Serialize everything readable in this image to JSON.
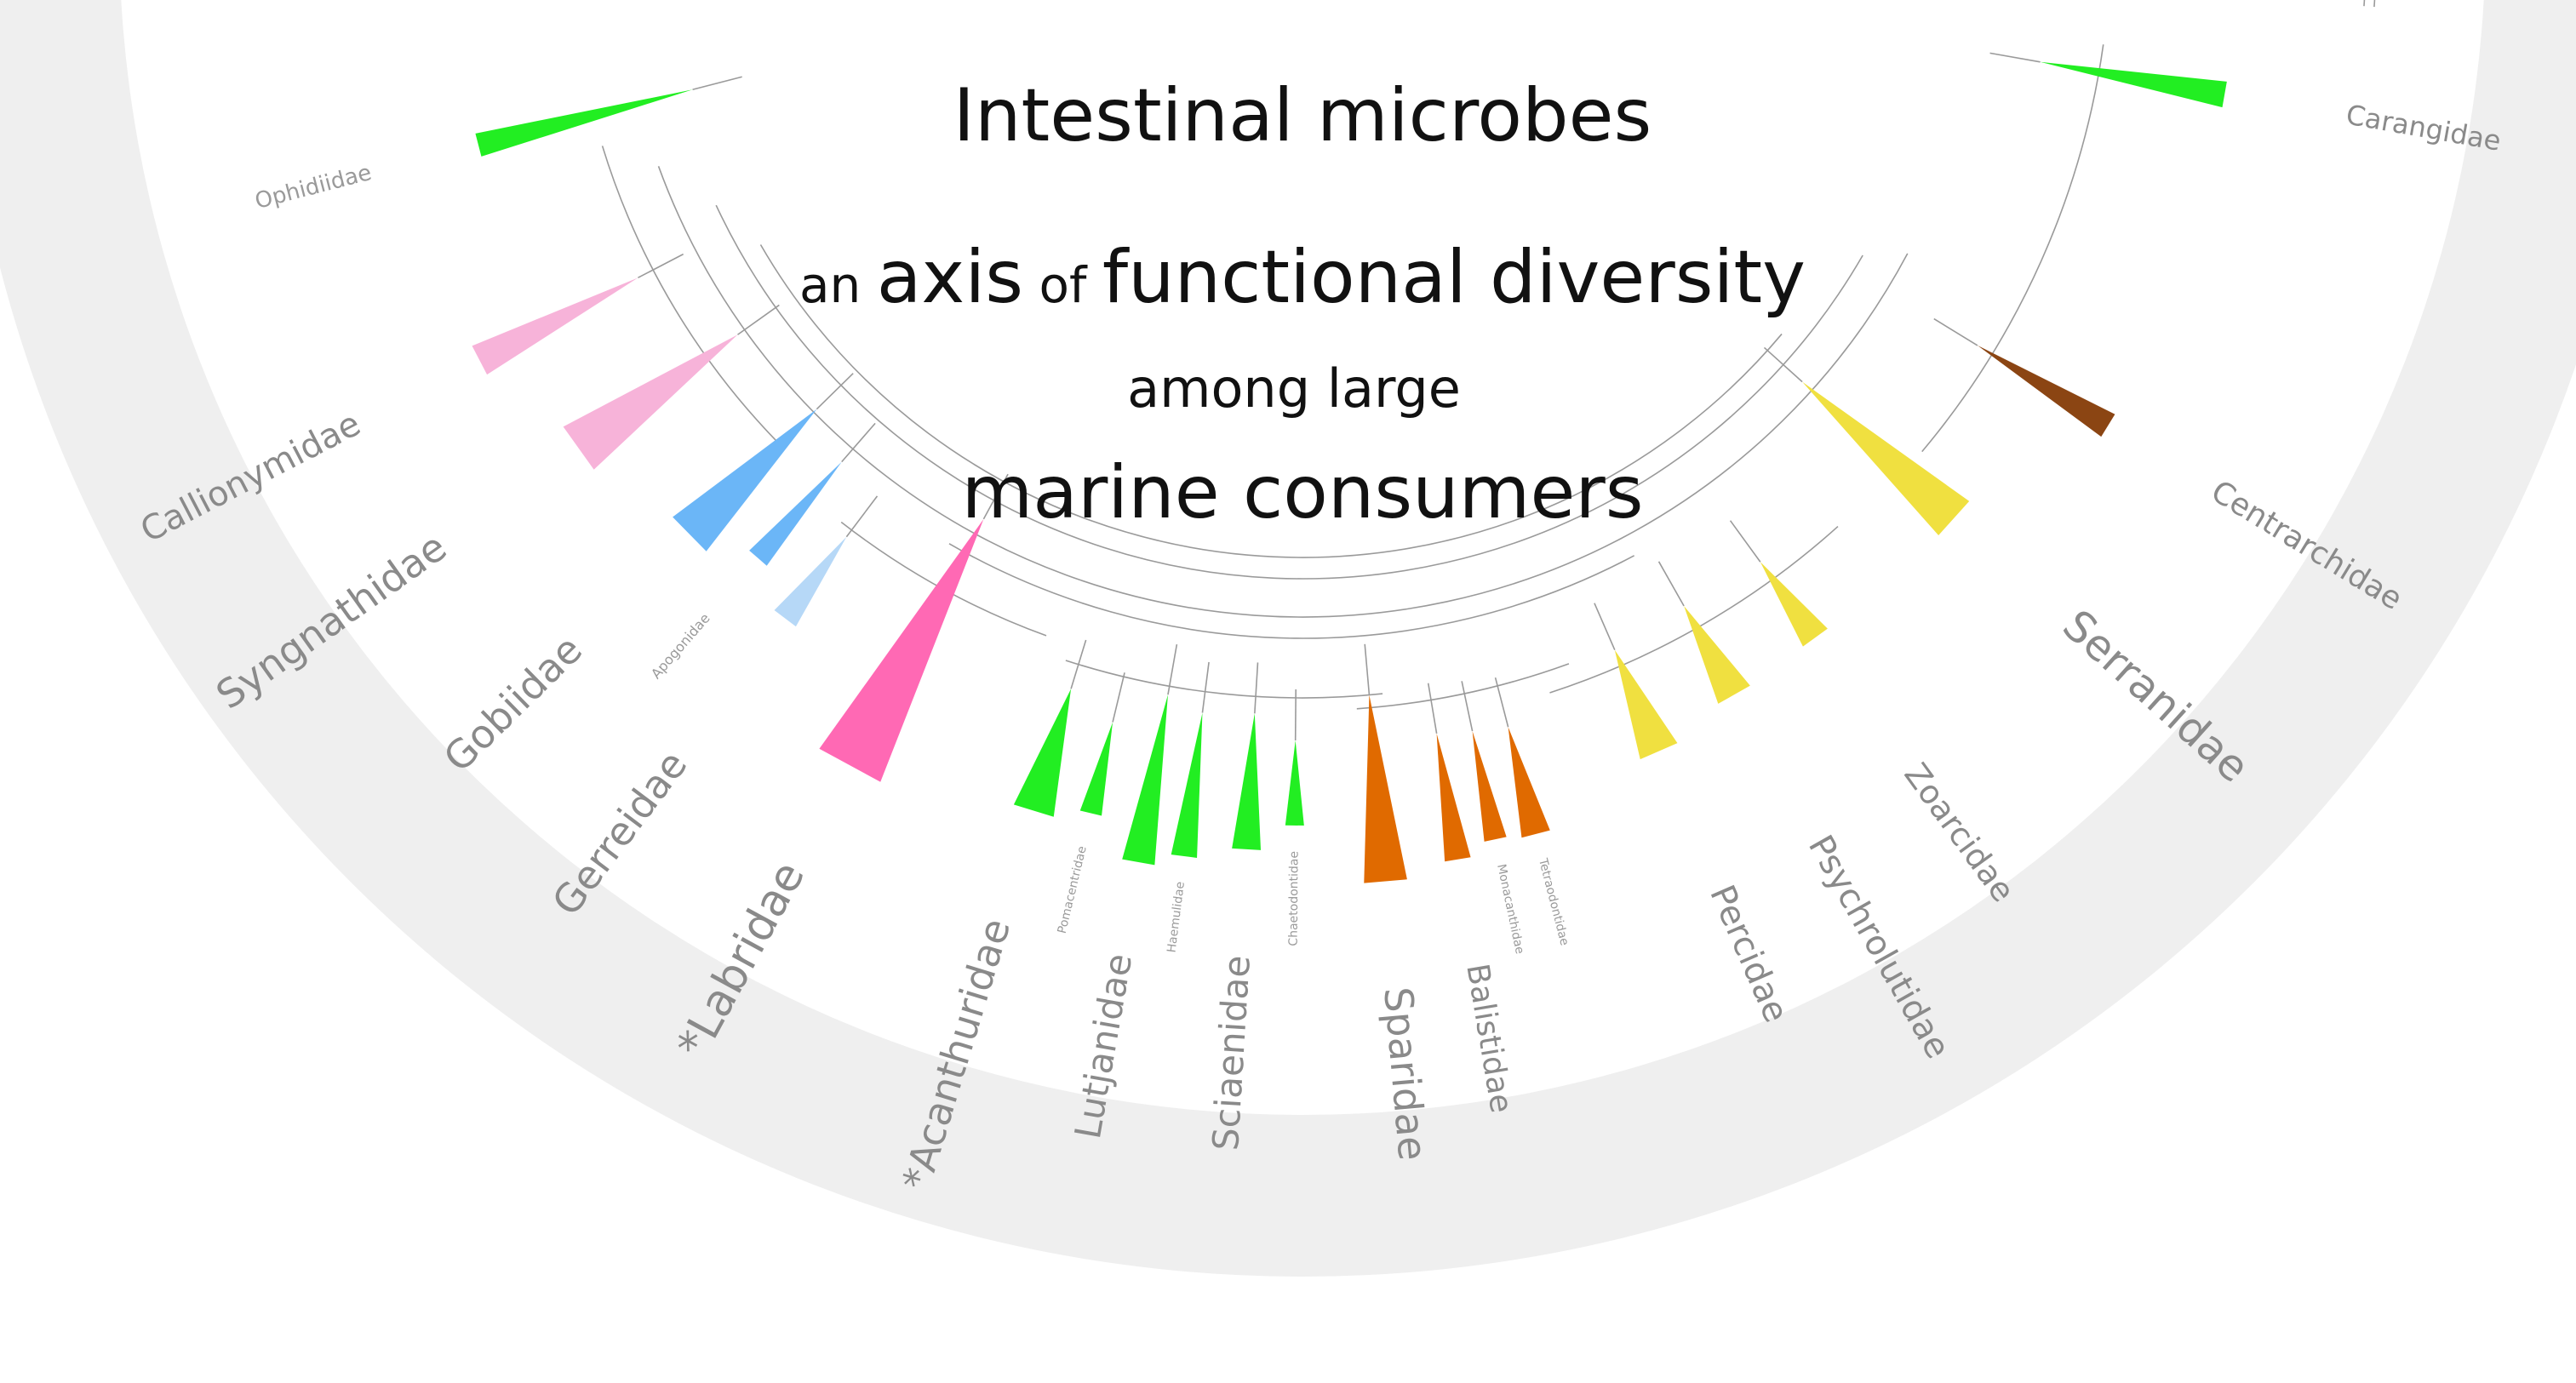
{
  "title": {
    "line1": "Intestinal microbes",
    "line2_parts": [
      {
        "text": "an ",
        "size": "small"
      },
      {
        "text": "axis",
        "size": "large"
      },
      {
        "text": " of ",
        "size": "small"
      },
      {
        "text": "functional diversity",
        "size": "large"
      }
    ],
    "line3": "among large",
    "line4": "marine consumers"
  },
  "colors": {
    "background_ring": "#efefef",
    "branch": "#9a9a9a",
    "label": "#8a8a8a",
    "title": "#111111"
  },
  "families": [
    {
      "name": "Ophidiidae",
      "color": "#22ee22",
      "major": false
    },
    {
      "name": "Callionymidae",
      "color": "#f7b3d9",
      "major": true
    },
    {
      "name": "Syngnathidae",
      "color": "#f7b3d9",
      "major": true
    },
    {
      "name": "Gobiidae",
      "color": "#6bb6f7",
      "major": true
    },
    {
      "name": "Apogonidae",
      "color": "#6bb6f7",
      "major": false
    },
    {
      "name": "Gerreidae",
      "color": "#b6d8f7",
      "major": true
    },
    {
      "name": "*Labridae",
      "color": "#ff69b4",
      "major": true
    },
    {
      "name": "*Acanthuridae",
      "color": "#22ee22",
      "major": true
    },
    {
      "name": "Pomacentridae",
      "color": "#22ee22",
      "major": false
    },
    {
      "name": "Lutjanidae",
      "color": "#22ee22",
      "major": true
    },
    {
      "name": "Haemulidae",
      "color": "#22ee22",
      "major": false
    },
    {
      "name": "Sciaenidae",
      "color": "#22ee22",
      "major": true
    },
    {
      "name": "Chaetodontidae",
      "color": "#22ee22",
      "major": false
    },
    {
      "name": "Sparidae",
      "color": "#e06a00",
      "major": true
    },
    {
      "name": "Balistidae",
      "color": "#e06a00",
      "major": true
    },
    {
      "name": "Monacanthidae",
      "color": "#e06a00",
      "major": false
    },
    {
      "name": "Tetraodontidae",
      "color": "#e06a00",
      "major": false
    },
    {
      "name": "Percidae",
      "color": "#f0e040",
      "major": true
    },
    {
      "name": "Psychrolutidae",
      "color": "#f0e040",
      "major": true
    },
    {
      "name": "Zoarcidae",
      "color": "#f0e040",
      "major": true
    },
    {
      "name": "Serranidae",
      "color": "#f0e040",
      "major": true
    },
    {
      "name": "Centrarchidae",
      "color": "#8b4513",
      "major": true
    },
    {
      "name": "Carangidae",
      "color": "#22ee22",
      "major": true
    }
  ]
}
